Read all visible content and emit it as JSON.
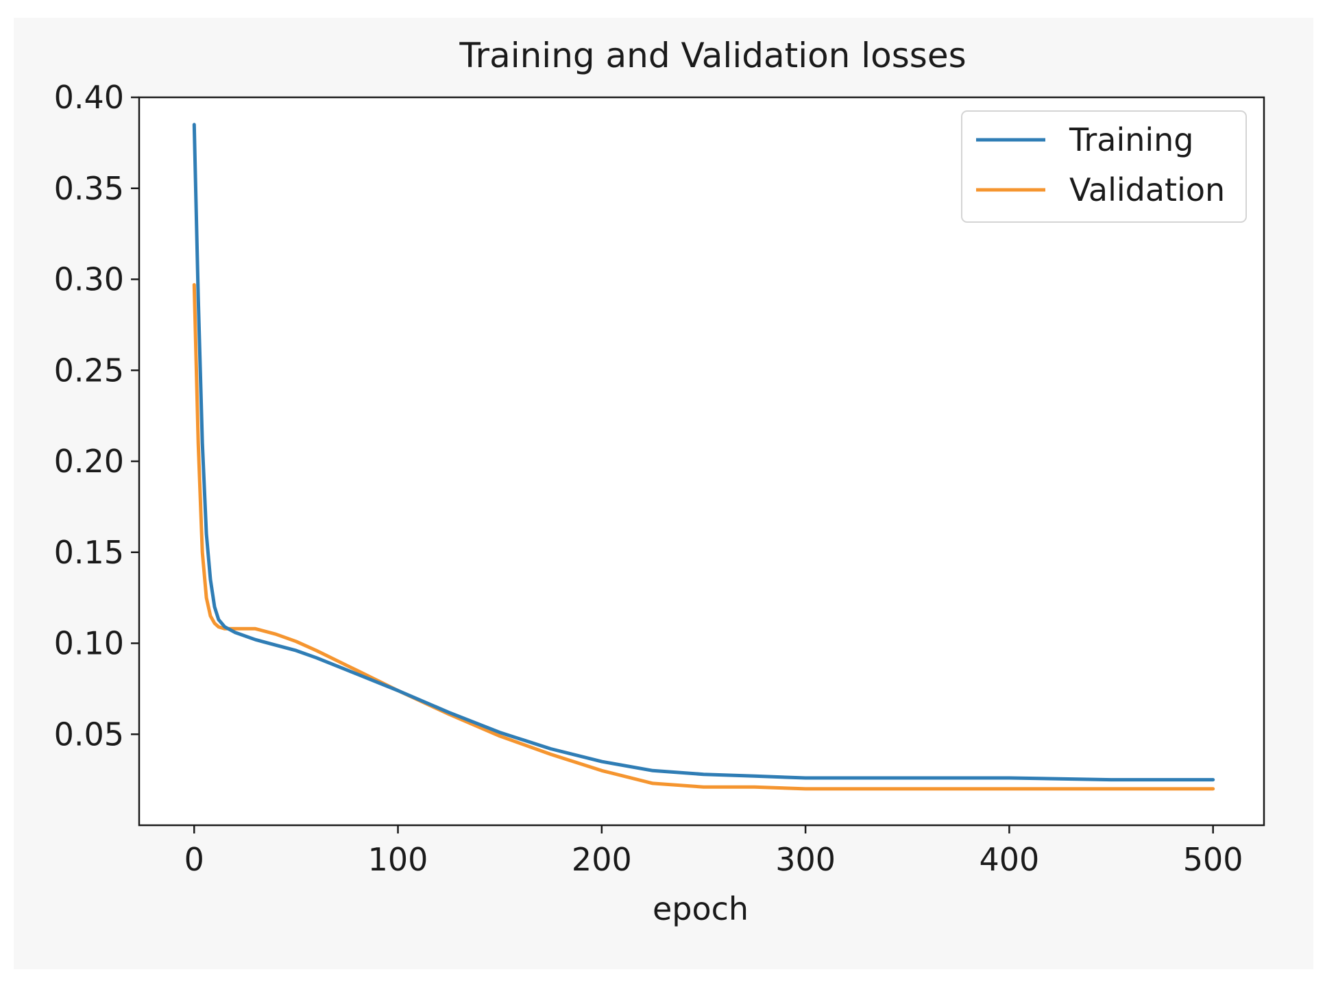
{
  "chart_data": {
    "type": "line",
    "title": "Training and Validation losses",
    "xlabel": "epoch",
    "ylabel": "",
    "xlim": [
      -27,
      525
    ],
    "ylim": [
      0.0,
      0.4
    ],
    "xticks": [
      0,
      100,
      200,
      300,
      400,
      500
    ],
    "xtick_labels": [
      "0",
      "100",
      "200",
      "300",
      "400",
      "500"
    ],
    "yticks": [
      0.05,
      0.1,
      0.15,
      0.2,
      0.25,
      0.3,
      0.35,
      0.4
    ],
    "ytick_labels": [
      "0.05",
      "0.10",
      "0.15",
      "0.20",
      "0.25",
      "0.30",
      "0.35",
      "0.40"
    ],
    "legend_position": "top-right",
    "grid": false,
    "series": [
      {
        "name": "Training",
        "color": "#2f7db5",
        "x": [
          0,
          2,
          4,
          6,
          8,
          10,
          12,
          15,
          20,
          30,
          40,
          50,
          60,
          80,
          100,
          125,
          150,
          175,
          200,
          225,
          250,
          275,
          300,
          350,
          400,
          450,
          500
        ],
        "y": [
          0.385,
          0.29,
          0.21,
          0.16,
          0.135,
          0.12,
          0.113,
          0.109,
          0.106,
          0.102,
          0.099,
          0.096,
          0.092,
          0.083,
          0.074,
          0.062,
          0.051,
          0.042,
          0.035,
          0.03,
          0.028,
          0.027,
          0.026,
          0.026,
          0.026,
          0.025,
          0.025
        ]
      },
      {
        "name": "Validation",
        "color": "#f5952f",
        "x": [
          0,
          2,
          4,
          6,
          8,
          10,
          12,
          15,
          20,
          30,
          40,
          50,
          60,
          80,
          100,
          125,
          150,
          175,
          200,
          225,
          250,
          275,
          300,
          350,
          400,
          450,
          500
        ],
        "y": [
          0.297,
          0.21,
          0.15,
          0.125,
          0.115,
          0.111,
          0.109,
          0.108,
          0.108,
          0.108,
          0.105,
          0.101,
          0.096,
          0.085,
          0.074,
          0.061,
          0.049,
          0.039,
          0.03,
          0.023,
          0.021,
          0.021,
          0.02,
          0.02,
          0.02,
          0.02,
          0.02
        ]
      }
    ]
  }
}
